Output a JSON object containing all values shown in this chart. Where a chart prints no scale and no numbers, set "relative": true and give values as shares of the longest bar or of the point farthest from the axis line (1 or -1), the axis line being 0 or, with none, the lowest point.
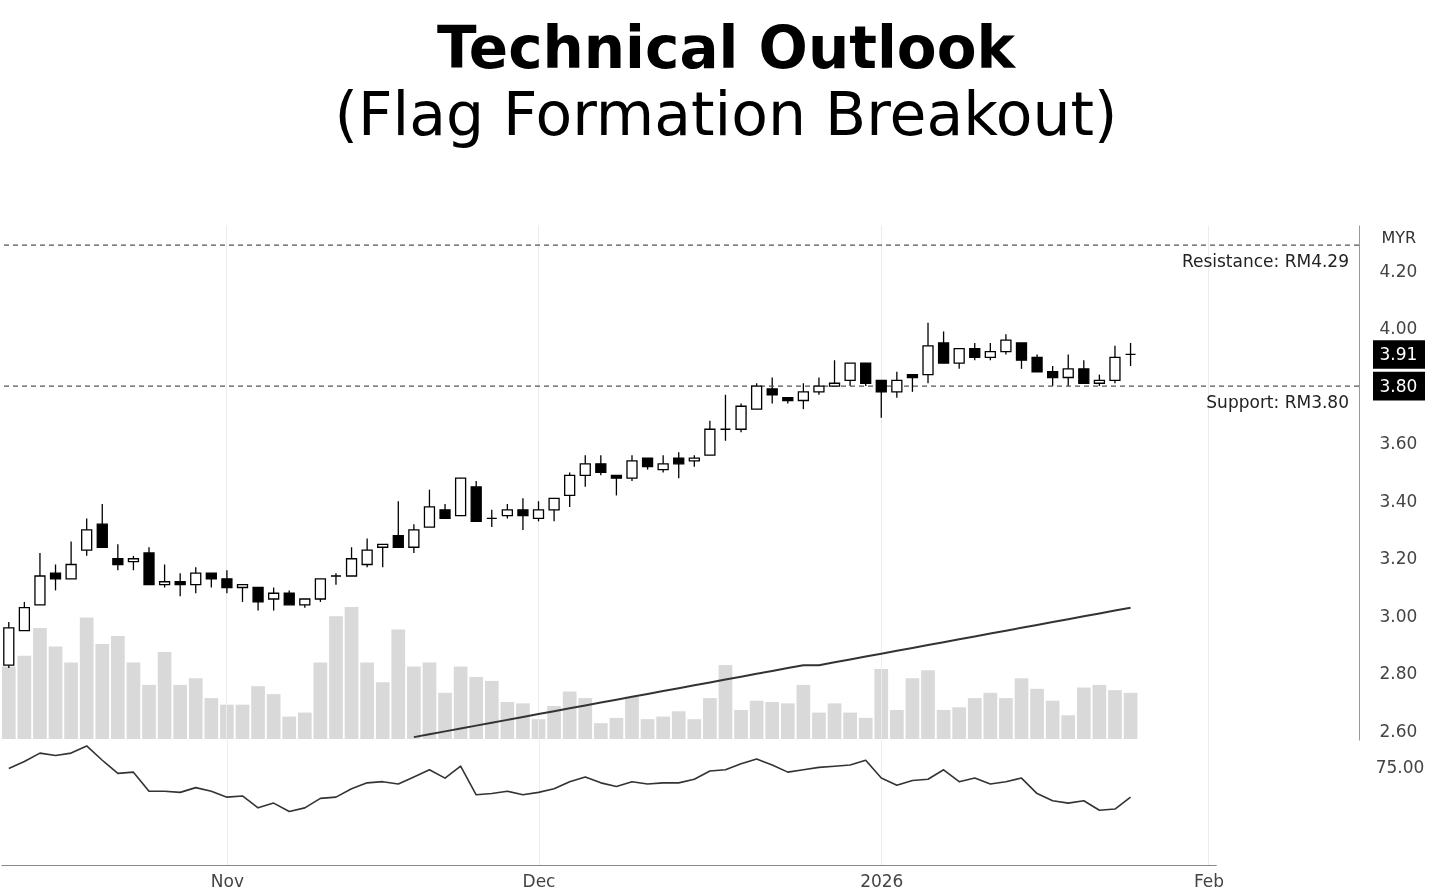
{
  "chart_data": [
    {
      "type": "candlestick",
      "title": "Technical Outlook",
      "subtitle": "(Flag Formation Breakout)",
      "ylabel": "MYR",
      "color": "#000000",
      "categories": [
        null,
        null,
        null,
        null,
        null,
        null,
        null,
        null,
        null,
        null,
        null,
        null,
        null,
        null,
        null,
        null,
        null,
        null,
        null,
        null,
        null,
        null,
        null,
        null,
        null,
        null,
        null,
        null,
        null,
        null,
        null,
        null,
        null,
        null,
        null,
        null,
        null,
        null,
        null,
        null,
        null,
        null,
        null,
        null,
        null,
        null,
        null,
        null,
        null,
        null,
        null,
        null,
        null,
        null,
        null,
        null,
        null,
        null,
        null,
        null,
        null,
        null,
        null,
        null,
        null,
        null,
        null,
        null,
        null,
        null,
        null,
        null,
        null,
        null,
        null,
        null,
        null,
        null
      ],
      "ohlc": [
        [
          2.83,
          2.98,
          2.82,
          2.96
        ],
        [
          2.95,
          3.05,
          2.95,
          3.03
        ],
        [
          3.04,
          3.22,
          3.04,
          3.14
        ],
        [
          3.15,
          3.18,
          3.09,
          3.13
        ],
        [
          3.13,
          3.26,
          3.13,
          3.18
        ],
        [
          3.23,
          3.34,
          3.21,
          3.3
        ],
        [
          3.32,
          3.39,
          3.24,
          3.24
        ],
        [
          3.2,
          3.25,
          3.16,
          3.18
        ],
        [
          3.19,
          3.21,
          3.16,
          3.2
        ],
        [
          3.22,
          3.24,
          3.11,
          3.11
        ],
        [
          3.11,
          3.18,
          3.1,
          3.12
        ],
        [
          3.12,
          3.15,
          3.07,
          3.11
        ],
        [
          3.11,
          3.17,
          3.08,
          3.15
        ],
        [
          3.15,
          3.15,
          3.1,
          3.13
        ],
        [
          3.13,
          3.16,
          3.08,
          3.1
        ],
        [
          3.1,
          3.11,
          3.05,
          3.11
        ],
        [
          3.1,
          3.1,
          3.02,
          3.05
        ],
        [
          3.06,
          3.1,
          3.02,
          3.08
        ],
        [
          3.08,
          3.09,
          3.04,
          3.04
        ],
        [
          3.04,
          3.06,
          3.03,
          3.06
        ],
        [
          3.06,
          3.13,
          3.05,
          3.13
        ],
        [
          3.14,
          3.15,
          3.11,
          3.14
        ],
        [
          3.14,
          3.24,
          3.14,
          3.2
        ],
        [
          3.18,
          3.27,
          3.17,
          3.23
        ],
        [
          3.24,
          3.25,
          3.17,
          3.25
        ],
        [
          3.28,
          3.4,
          3.24,
          3.24
        ],
        [
          3.24,
          3.32,
          3.22,
          3.3
        ],
        [
          3.31,
          3.44,
          3.31,
          3.38
        ],
        [
          3.37,
          3.39,
          3.34,
          3.34
        ],
        [
          3.35,
          3.48,
          3.35,
          3.48
        ],
        [
          3.45,
          3.47,
          3.33,
          3.33
        ],
        [
          3.34,
          3.37,
          3.31,
          3.34
        ],
        [
          3.35,
          3.39,
          3.34,
          3.37
        ],
        [
          3.37,
          3.41,
          3.3,
          3.35
        ],
        [
          3.34,
          3.4,
          3.33,
          3.37
        ],
        [
          3.37,
          3.41,
          3.33,
          3.41
        ],
        [
          3.42,
          3.5,
          3.38,
          3.49
        ],
        [
          3.49,
          3.56,
          3.45,
          3.53
        ],
        [
          3.53,
          3.56,
          3.49,
          3.5
        ],
        [
          3.49,
          3.49,
          3.42,
          3.48
        ],
        [
          3.48,
          3.56,
          3.47,
          3.54
        ],
        [
          3.55,
          3.55,
          3.51,
          3.52
        ],
        [
          3.51,
          3.56,
          3.5,
          3.53
        ],
        [
          3.55,
          3.57,
          3.48,
          3.53
        ],
        [
          3.54,
          3.56,
          3.52,
          3.55
        ],
        [
          3.56,
          3.68,
          3.56,
          3.65
        ],
        [
          3.65,
          3.77,
          3.61,
          3.65
        ],
        [
          3.65,
          3.74,
          3.64,
          3.73
        ],
        [
          3.72,
          3.81,
          3.72,
          3.8
        ],
        [
          3.79,
          3.83,
          3.74,
          3.77
        ],
        [
          3.76,
          3.76,
          3.74,
          3.75
        ],
        [
          3.75,
          3.81,
          3.72,
          3.78
        ],
        [
          3.78,
          3.83,
          3.77,
          3.8
        ],
        [
          3.8,
          3.89,
          3.8,
          3.81
        ],
        [
          3.82,
          3.88,
          3.8,
          3.88
        ],
        [
          3.88,
          3.88,
          3.8,
          3.81
        ],
        [
          3.82,
          3.82,
          3.69,
          3.78
        ],
        [
          3.78,
          3.85,
          3.76,
          3.82
        ],
        [
          3.84,
          3.84,
          3.78,
          3.83
        ],
        [
          3.84,
          4.02,
          3.81,
          3.94
        ],
        [
          3.95,
          3.99,
          3.88,
          3.88
        ],
        [
          3.88,
          3.93,
          3.86,
          3.93
        ],
        [
          3.93,
          3.95,
          3.89,
          3.9
        ],
        [
          3.9,
          3.95,
          3.89,
          3.92
        ],
        [
          3.92,
          3.98,
          3.91,
          3.96
        ],
        [
          3.95,
          3.95,
          3.86,
          3.89
        ],
        [
          3.9,
          3.91,
          3.85,
          3.85
        ],
        [
          3.85,
          3.87,
          3.8,
          3.83
        ],
        [
          3.83,
          3.91,
          3.8,
          3.86
        ],
        [
          3.86,
          3.89,
          3.81,
          3.81
        ],
        [
          3.81,
          3.84,
          3.8,
          3.82
        ],
        [
          3.82,
          3.94,
          3.81,
          3.9
        ],
        [
          3.91,
          3.95,
          3.87,
          3.91
        ],
        null,
        null,
        null,
        null,
        null
      ],
      "series": [
        {
          "type": "line",
          "color": "#333333",
          "values": [
            null,
            null,
            null,
            null,
            null,
            null,
            null,
            null,
            null,
            null,
            null,
            null,
            null,
            null,
            null,
            null,
            null,
            null,
            null,
            null,
            null,
            null,
            null,
            null,
            null,
            null,
            2.58,
            2.59,
            2.6,
            2.61,
            2.62,
            2.63,
            2.64,
            2.65,
            2.66,
            2.67,
            2.68,
            2.69,
            2.7,
            2.71,
            2.72,
            2.73,
            2.74,
            2.75,
            2.76,
            2.77,
            2.78,
            2.79,
            2.8,
            2.81,
            2.82,
            2.83,
            2.83,
            2.84,
            2.85,
            2.86,
            2.87,
            2.88,
            2.89,
            2.9,
            2.91,
            2.92,
            2.93,
            2.94,
            2.95,
            2.96,
            2.97,
            2.98,
            2.99,
            3.0,
            3.01,
            3.02,
            3.03,
            null,
            null,
            null,
            null,
            null
          ]
        }
      ],
      "ref_lines": [
        {
          "axis": "y",
          "value": 4.29,
          "label": "Resistance: RM4.29",
          "line_style": "dashed",
          "color": "#555555"
        },
        {
          "axis": "y",
          "value": 3.8,
          "label": "Support: RM3.80",
          "line_style": "dashed",
          "color": "#555555"
        }
      ],
      "ylim": [
        2.57,
        4.36
      ],
      "yticks": [
        {
          "value": 2.6,
          "label": "2.60"
        },
        {
          "value": 2.8,
          "label": "2.80"
        },
        {
          "value": 3.0,
          "label": "3.00"
        },
        {
          "value": 3.2,
          "label": "3.20"
        },
        {
          "value": 3.4,
          "label": "3.40"
        },
        {
          "value": 3.6,
          "label": "3.60"
        },
        {
          "value": 3.8,
          "label": "3.80"
        },
        {
          "value": 3.91,
          "label": "3.91"
        },
        {
          "value": 4.0,
          "label": "4.00"
        },
        {
          "value": 4.2,
          "label": "4.20"
        }
      ],
      "grid": "x",
      "tick_labels": "y"
    },
    {
      "type": "bar",
      "relative": true,
      "color": "#d9d9d9",
      "categories": [
        null,
        null,
        null,
        null,
        null,
        null,
        null,
        null,
        null,
        null,
        null,
        null,
        null,
        null,
        null,
        null,
        null,
        null,
        null,
        null,
        null,
        null,
        null,
        null,
        null,
        null,
        null,
        null,
        null,
        null,
        null,
        null,
        null,
        null,
        null,
        null,
        null,
        null,
        null,
        null,
        null,
        null,
        null,
        null,
        null,
        null,
        null,
        null,
        null,
        null,
        null,
        null,
        null,
        null,
        null,
        null,
        null,
        null,
        null,
        null,
        null,
        null,
        null,
        null,
        null,
        null,
        null,
        null,
        null,
        null,
        null,
        null,
        null
      ],
      "values": [
        0.55,
        0.63,
        0.84,
        0.7,
        0.58,
        0.92,
        0.72,
        0.78,
        0.58,
        0.41,
        0.66,
        0.41,
        0.46,
        0.31,
        0.26,
        0.26,
        0.4,
        0.34,
        0.17,
        0.2,
        0.58,
        0.93,
        1,
        0.58,
        0.43,
        0.83,
        0.55,
        0.58,
        0.35,
        0.55,
        0.47,
        0.44,
        0.28,
        0.27,
        0.15,
        0.25,
        0.36,
        0.31,
        0.12,
        0.16,
        0.32,
        0.15,
        0.17,
        0.21,
        0.15,
        0.31,
        0.56,
        0.22,
        0.29,
        0.28,
        0.27,
        0.41,
        0.2,
        0.27,
        0.2,
        0.16,
        0.53,
        0.22,
        0.46,
        0.52,
        0.22,
        0.24,
        0.31,
        0.35,
        0.31,
        0.46,
        0.38,
        0.29,
        0.18,
        0.39,
        0.41,
        0.37,
        0.35
      ],
      "tick_labels": false
    },
    {
      "type": "line",
      "relative": true,
      "color": "#333333",
      "categories": [
        null,
        null,
        null,
        null,
        null,
        null,
        null,
        null,
        null,
        null,
        null,
        null,
        null,
        null,
        "Nov",
        null,
        null,
        null,
        null,
        null,
        null,
        null,
        null,
        null,
        null,
        null,
        null,
        null,
        null,
        null,
        null,
        null,
        null,
        null,
        "Dec",
        null,
        null,
        null,
        null,
        null,
        null,
        null,
        null,
        null,
        null,
        null,
        null,
        null,
        null,
        null,
        null,
        null,
        null,
        null,
        null,
        null,
        "2026",
        null,
        null,
        null,
        null,
        null,
        null,
        null,
        null,
        null,
        null,
        null,
        null,
        null,
        null,
        null,
        null,
        null,
        null,
        null,
        null,
        "Feb"
      ],
      "values": [
        0.81,
        0.87,
        0.94,
        0.92,
        0.94,
        1,
        0.88,
        0.77,
        0.78,
        0.62,
        0.62,
        0.61,
        0.65,
        0.62,
        0.57,
        0.58,
        0.48,
        0.52,
        0.45,
        0.48,
        0.56,
        0.57,
        0.64,
        0.69,
        0.7,
        0.68,
        0.74,
        0.8,
        0.73,
        0.83,
        0.59,
        0.6,
        0.62,
        0.59,
        0.61,
        0.64,
        0.7,
        0.74,
        0.69,
        0.66,
        0.7,
        0.68,
        0.69,
        0.69,
        0.72,
        0.79,
        0.8,
        0.85,
        0.89,
        0.84,
        0.78,
        0.8,
        0.82,
        0.83,
        0.84,
        0.88,
        0.73,
        0.67,
        0.71,
        0.72,
        0.8,
        0.7,
        0.73,
        0.68,
        0.7,
        0.73,
        0.6,
        0.54,
        0.52,
        0.54,
        0.46,
        0.47,
        0.57,
        null,
        null,
        null,
        null,
        null
      ],
      "annotations": [
        "75.00"
      ],
      "grid": "x",
      "tick_labels": "x"
    }
  ]
}
